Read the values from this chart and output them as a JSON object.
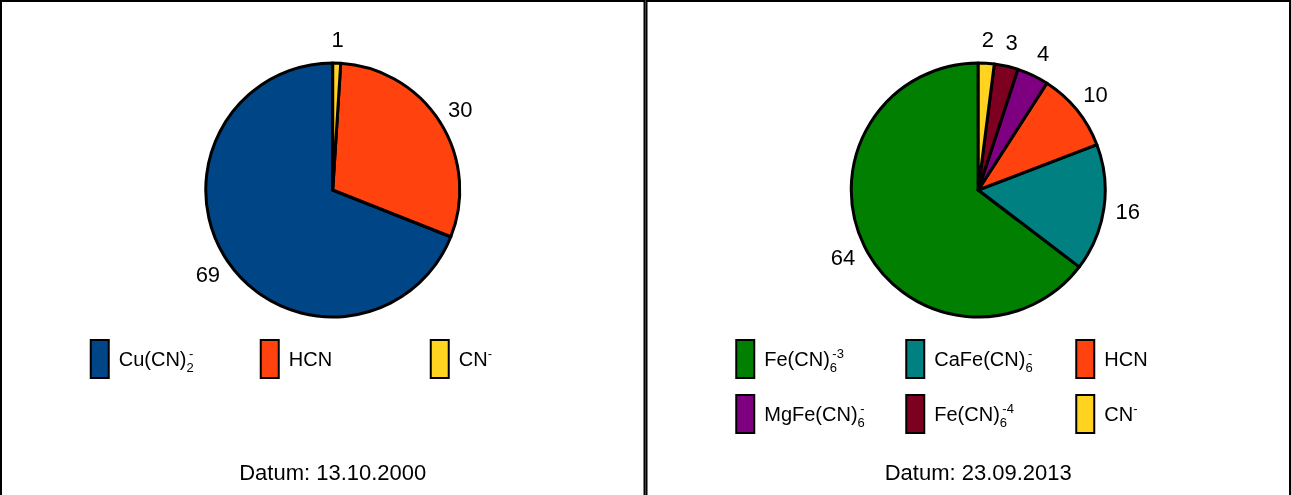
{
  "chart_data": [
    {
      "type": "pie",
      "categories": [
        "Cu(CN)$_{2}$$^{-}$",
        "HCN",
        "CN$^{-}$"
      ],
      "values": [
        69,
        30,
        1
      ],
      "colors": [
        "#004586",
        "#ff420e",
        "#ffd320"
      ],
      "data_labels": true,
      "legend": "bottom",
      "annotations": [
        "Datum: 13.10.2000"
      ]
    },
    {
      "type": "pie",
      "categories": [
        "Fe(CN)$_{6}$$^{-3}$",
        "CaFe(CN)$_{6}$$^{-}$",
        "HCN",
        "MgFe(CN)$_{6}$$^{-}$",
        "Fe(CN)$_{6}$$^{-4}$",
        "CN$^{-}$"
      ],
      "values": [
        64,
        16,
        10,
        4,
        3,
        2
      ],
      "colors": [
        "#007f00",
        "#008080",
        "#ff420e",
        "#7e0080",
        "#7e0021",
        "#ffd320"
      ],
      "data_labels": true,
      "legend": "bottom",
      "annotations": [
        "Datum: 23.09.2013"
      ]
    }
  ]
}
